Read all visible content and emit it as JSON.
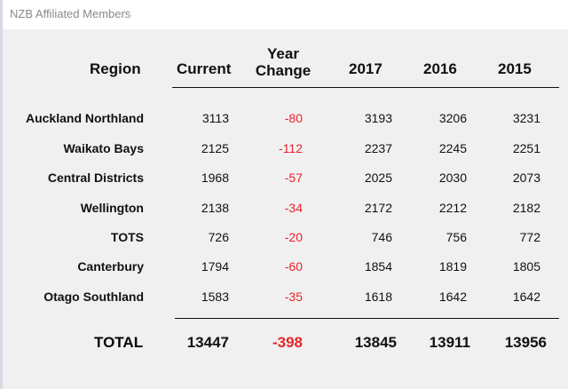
{
  "window": {
    "title": "NZB Affiliated Members"
  },
  "table": {
    "headers": {
      "region": "Region",
      "current": "Current",
      "year_change": "Year Change",
      "y2017": "2017",
      "y2016": "2016",
      "y2015": "2015"
    },
    "rows": [
      {
        "region": "Auckland Northland",
        "current": "3113",
        "change": "-80",
        "y2017": "3193",
        "y2016": "3206",
        "y2015": "3231"
      },
      {
        "region": "Waikato Bays",
        "current": "2125",
        "change": "-112",
        "y2017": "2237",
        "y2016": "2245",
        "y2015": "2251"
      },
      {
        "region": "Central Districts",
        "current": "1968",
        "change": "-57",
        "y2017": "2025",
        "y2016": "2030",
        "y2015": "2073"
      },
      {
        "region": "Wellington",
        "current": "2138",
        "change": "-34",
        "y2017": "2172",
        "y2016": "2212",
        "y2015": "2182"
      },
      {
        "region": "TOTS",
        "current": "726",
        "change": "-20",
        "y2017": "746",
        "y2016": "756",
        "y2015": "772"
      },
      {
        "region": "Canterbury",
        "current": "1794",
        "change": "-60",
        "y2017": "1854",
        "y2016": "1819",
        "y2015": "1805"
      },
      {
        "region": "Otago Southland",
        "current": "1583",
        "change": "-35",
        "y2017": "1618",
        "y2016": "1642",
        "y2015": "1642"
      }
    ],
    "total": {
      "label": "TOTAL",
      "current": "13447",
      "change": "-398",
      "y2017": "13845",
      "y2016": "13911",
      "y2015": "13956"
    }
  },
  "colors": {
    "negative": "#e8242c",
    "background": "#f0f0f0"
  }
}
